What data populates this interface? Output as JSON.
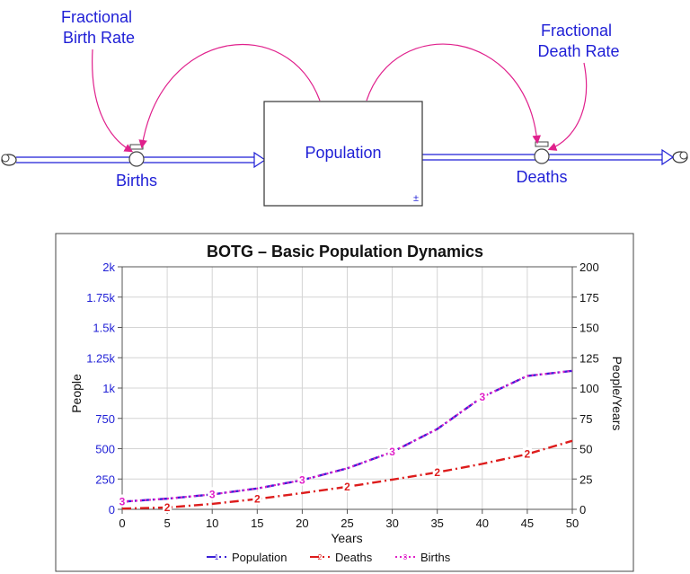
{
  "diagram": {
    "stock": {
      "label": "Population",
      "marker": "±"
    },
    "flows": [
      {
        "id": "births",
        "label": "Births"
      },
      {
        "id": "deaths",
        "label": "Deaths"
      }
    ],
    "auxiliaries": [
      {
        "id": "fractional-birth-rate",
        "lines": [
          "Fractional",
          "Birth Rate"
        ]
      },
      {
        "id": "fractional-death-rate",
        "lines": [
          "Fractional",
          "Death Rate"
        ]
      }
    ],
    "colors": {
      "text": "#1f1fd6",
      "link": "#e0208c",
      "pipe": "#1f1fd6"
    }
  },
  "chart_data": {
    "type": "line",
    "title": "BOTG – Basic Population Dynamics",
    "xlabel": "Years",
    "ylabel_left": "People",
    "ylabel_right": "People/Years",
    "xlim": [
      0,
      50
    ],
    "ylim_left": [
      0,
      2000
    ],
    "ylim_right": [
      0,
      200
    ],
    "x_ticks": [
      "0",
      "5",
      "10",
      "15",
      "20",
      "25",
      "30",
      "35",
      "40",
      "45",
      "50"
    ],
    "left_ticks": [
      "0",
      "250",
      "500",
      "750",
      "1k",
      "1.25k",
      "1.5k",
      "1.75k",
      "2k"
    ],
    "right_ticks": [
      "0",
      "25",
      "50",
      "75",
      "100",
      "125",
      "150",
      "175",
      "200"
    ],
    "grid": true,
    "legend_position": "bottom",
    "x": [
      0,
      5,
      10,
      15,
      20,
      25,
      30,
      35,
      40,
      45,
      50
    ],
    "series": [
      {
        "name": "Population",
        "marker": "1",
        "axis": "left",
        "color": "#3a1fd6",
        "style": "dash-dot",
        "values": [
          63,
          88,
          123,
          172,
          241,
          338,
          473,
          662,
          926,
          1100,
          1142
        ]
      },
      {
        "name": "Deaths",
        "marker": "2",
        "axis": "right",
        "color": "#dd1c1c",
        "style": "dash-dot",
        "values": [
          0.6,
          1.5,
          4.5,
          8.5,
          13.4,
          18.6,
          24.5,
          30.5,
          37.5,
          45.5,
          56.5
        ]
      },
      {
        "name": "Births",
        "marker": "3",
        "axis": "right",
        "color": "#e020c8",
        "style": "dotted",
        "values": [
          6.3,
          8.8,
          12.3,
          17.2,
          24.1,
          33.8,
          47.3,
          66.2,
          92.6,
          110,
          114.2
        ]
      }
    ]
  }
}
